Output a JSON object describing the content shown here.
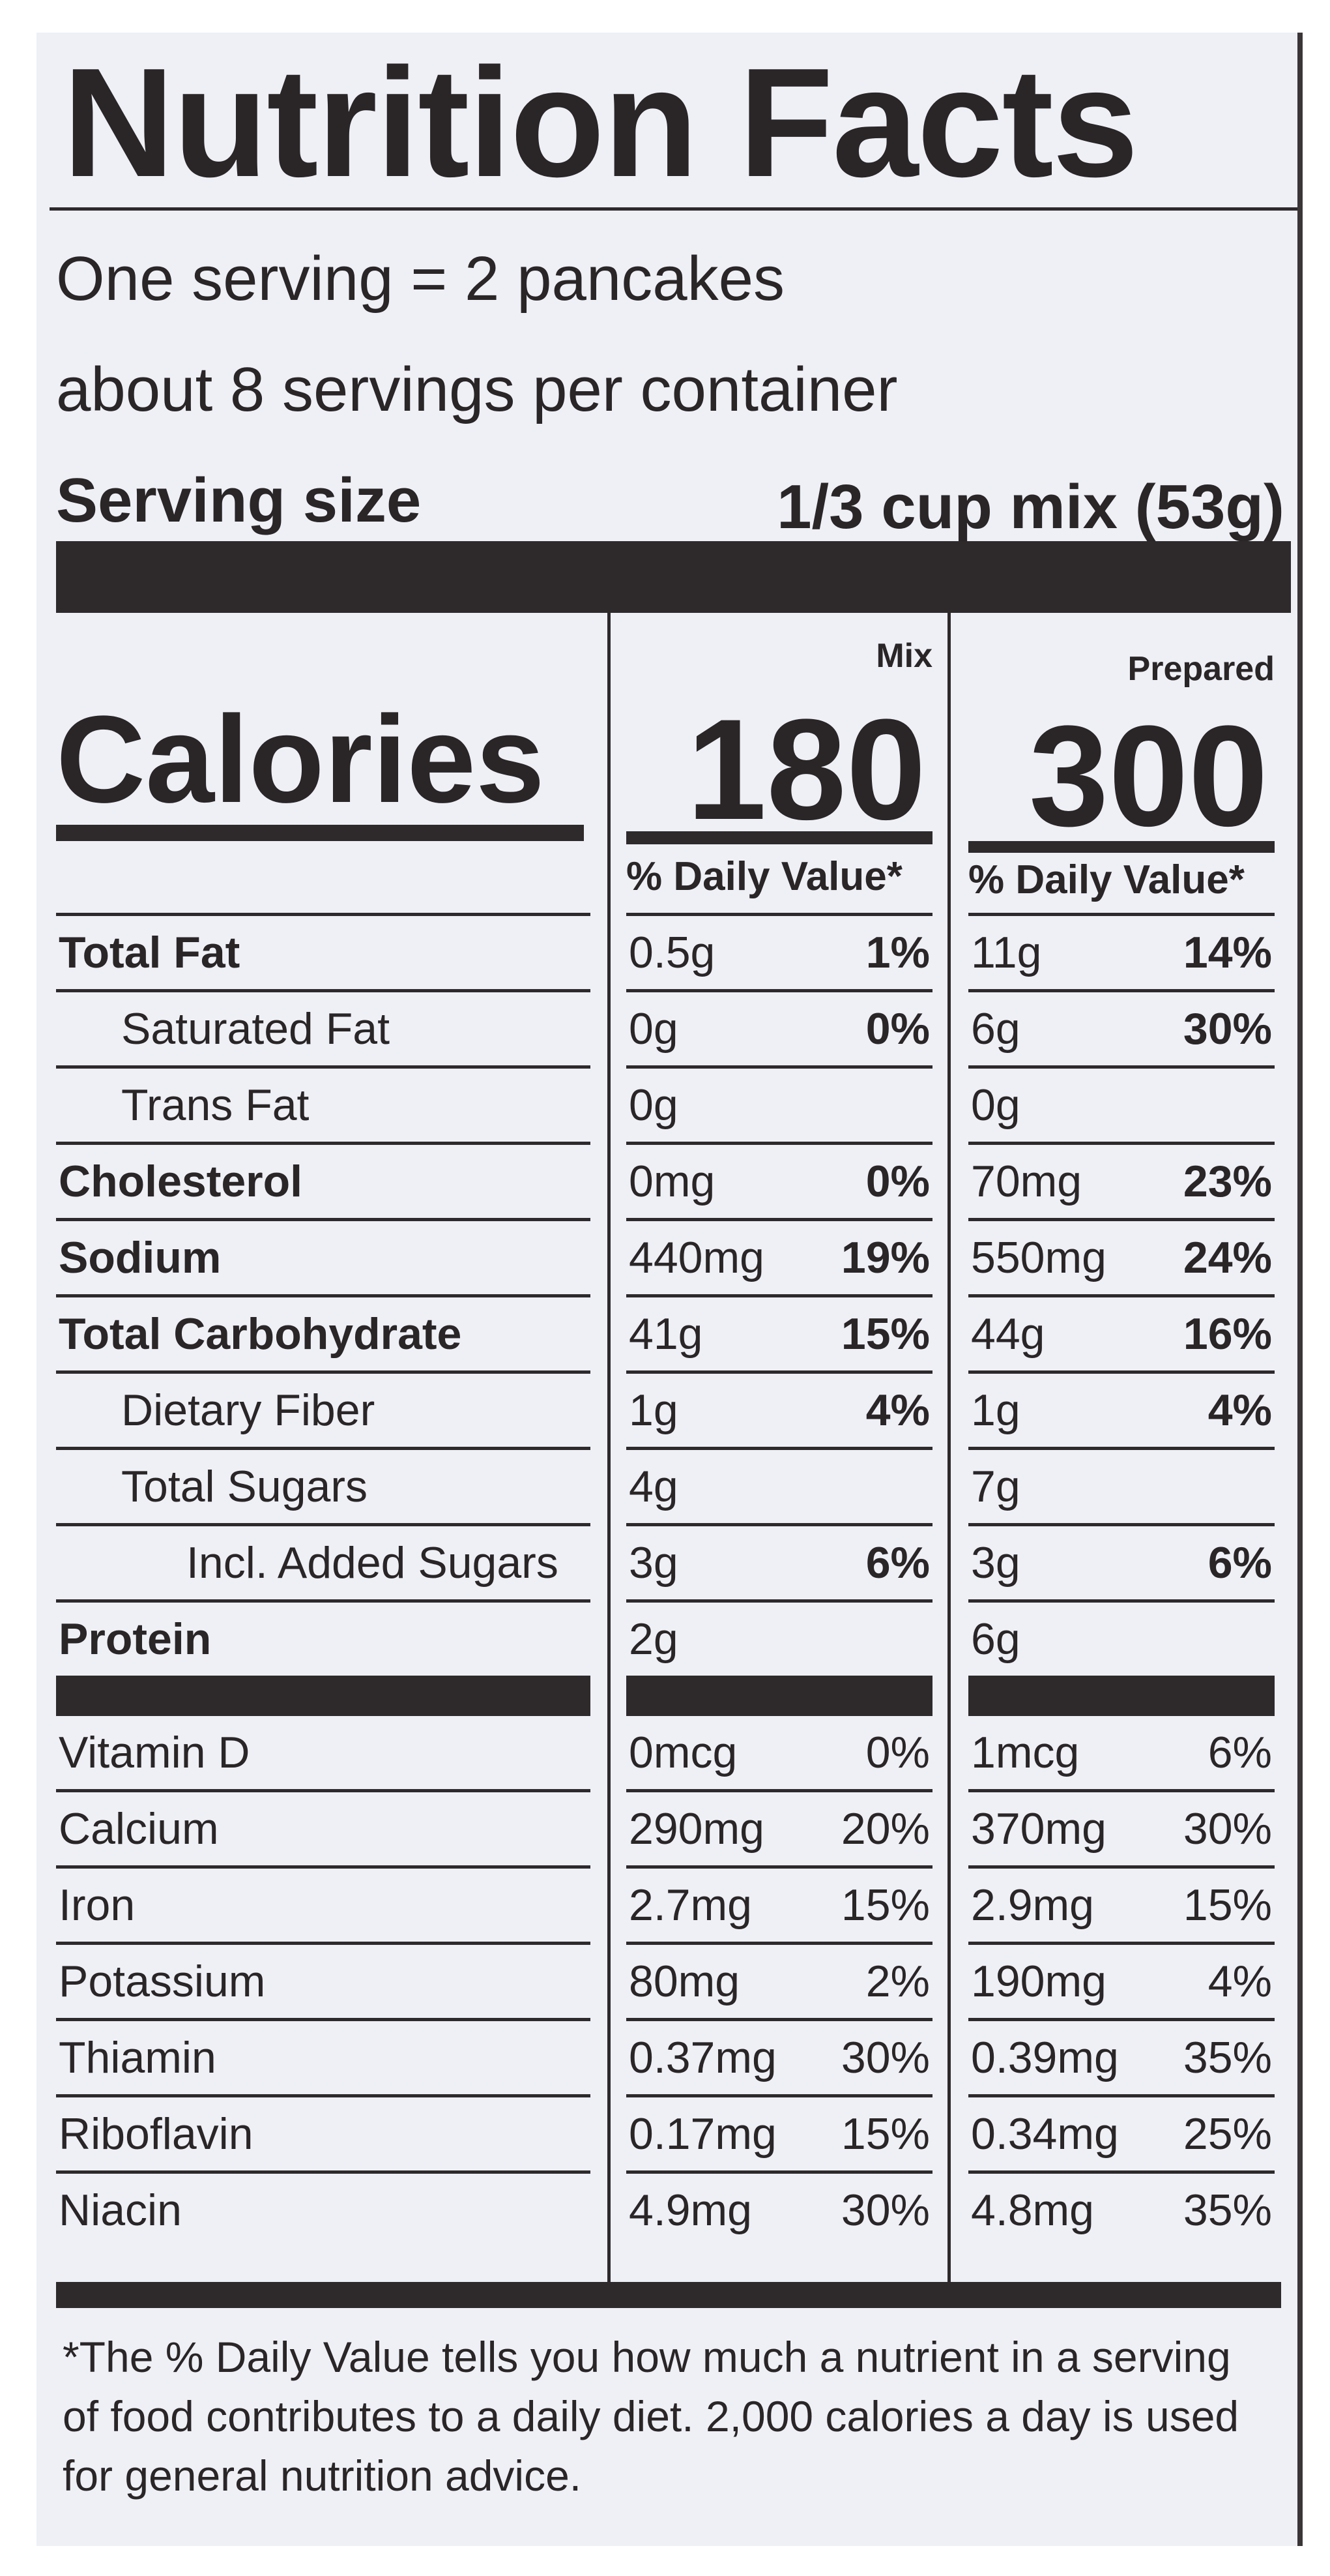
{
  "title": "Nutrition Facts",
  "serving_line1": "One serving = 2 pancakes",
  "serving_line2": "about 8 servings per container",
  "serving_size_label": "Serving size",
  "serving_size_value": "1/3 cup mix (53g)",
  "calories_label": "Calories",
  "columns": [
    {
      "header": "Mix",
      "calories": "180",
      "dv_header": "% Daily Value*"
    },
    {
      "header": "Prepared",
      "calories": "300",
      "dv_header": "% Daily Value*"
    }
  ],
  "nutrients": [
    {
      "name": "Total Fat",
      "bold": true,
      "indent": 0,
      "mix": [
        "0.5g",
        "1%"
      ],
      "prepared": [
        "11g",
        "14%"
      ]
    },
    {
      "name": "Saturated Fat",
      "bold": false,
      "indent": 1,
      "mix": [
        "0g",
        "0%"
      ],
      "prepared": [
        "6g",
        "30%"
      ]
    },
    {
      "name": "Trans Fat",
      "bold": false,
      "indent": 1,
      "mix": [
        "0g",
        ""
      ],
      "prepared": [
        "0g",
        ""
      ]
    },
    {
      "name": "Cholesterol",
      "bold": true,
      "indent": 0,
      "mix": [
        "0mg",
        "0%"
      ],
      "prepared": [
        "70mg",
        "23%"
      ]
    },
    {
      "name": "Sodium",
      "bold": true,
      "indent": 0,
      "mix": [
        "440mg",
        "19%"
      ],
      "prepared": [
        "550mg",
        "24%"
      ]
    },
    {
      "name": "Total Carbohydrate",
      "bold": true,
      "indent": 0,
      "mix": [
        "41g",
        "15%"
      ],
      "prepared": [
        "44g",
        "16%"
      ]
    },
    {
      "name": "Dietary Fiber",
      "bold": false,
      "indent": 1,
      "mix": [
        "1g",
        "4%"
      ],
      "prepared": [
        "1g",
        "4%"
      ]
    },
    {
      "name": "Total Sugars",
      "bold": false,
      "indent": 1,
      "mix": [
        "4g",
        ""
      ],
      "prepared": [
        "7g",
        ""
      ]
    },
    {
      "name": "Incl. Added Sugars",
      "bold": false,
      "indent": 2,
      "mix": [
        "3g",
        "6%"
      ],
      "prepared": [
        "3g",
        "6%"
      ]
    },
    {
      "name": "Protein",
      "bold": true,
      "indent": 0,
      "mix": [
        "2g",
        ""
      ],
      "prepared": [
        "6g",
        ""
      ]
    }
  ],
  "vitamins": [
    {
      "name": "Vitamin D",
      "mix": [
        "0mcg",
        "0%"
      ],
      "prepared": [
        "1mcg",
        "6%"
      ]
    },
    {
      "name": "Calcium",
      "mix": [
        "290mg",
        "20%"
      ],
      "prepared": [
        "370mg",
        "30%"
      ]
    },
    {
      "name": "Iron",
      "mix": [
        "2.7mg",
        "15%"
      ],
      "prepared": [
        "2.9mg",
        "15%"
      ]
    },
    {
      "name": "Potassium",
      "mix": [
        "80mg",
        "2%"
      ],
      "prepared": [
        "190mg",
        "4%"
      ]
    },
    {
      "name": "Thiamin",
      "mix": [
        "0.37mg",
        "30%"
      ],
      "prepared": [
        "0.39mg",
        "35%"
      ]
    },
    {
      "name": "Riboflavin",
      "mix": [
        "0.17mg",
        "15%"
      ],
      "prepared": [
        "0.34mg",
        "25%"
      ]
    },
    {
      "name": "Niacin",
      "mix": [
        "4.9mg",
        "30%"
      ],
      "prepared": [
        "4.8mg",
        "35%"
      ]
    }
  ],
  "footnote": "*The % Daily Value tells you how much a nutrient in a serving of food contributes to a daily diet. 2,000 calories a day is used for general nutrition advice."
}
